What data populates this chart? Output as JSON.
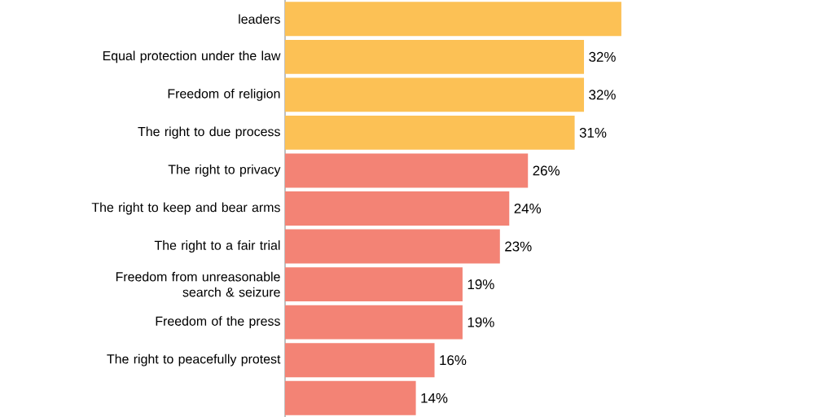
{
  "chart_data": {
    "type": "bar",
    "orientation": "horizontal",
    "categories": [
      "leaders",
      "Equal protection under the law",
      "Freedom of religion",
      "The right to due process",
      "The right to privacy",
      "The right to keep and bear arms",
      "The right to a fair trial",
      "Freedom from unreasonable search & seizure",
      "Freedom of the press",
      "The right to peacefully protest",
      null
    ],
    "values": [
      36,
      32,
      32,
      31,
      26,
      24,
      23,
      19,
      19,
      16,
      14
    ],
    "value_labels": [
      null,
      "32%",
      "32%",
      "31%",
      "26%",
      "24%",
      "23%",
      "19%",
      "19%",
      "16%",
      "14%"
    ],
    "colors": [
      "#fcc155",
      "#fcc155",
      "#fcc155",
      "#fcc155",
      "#f38375",
      "#f38375",
      "#f38375",
      "#f38375",
      "#f38375",
      "#f38375",
      "#f38375"
    ]
  }
}
